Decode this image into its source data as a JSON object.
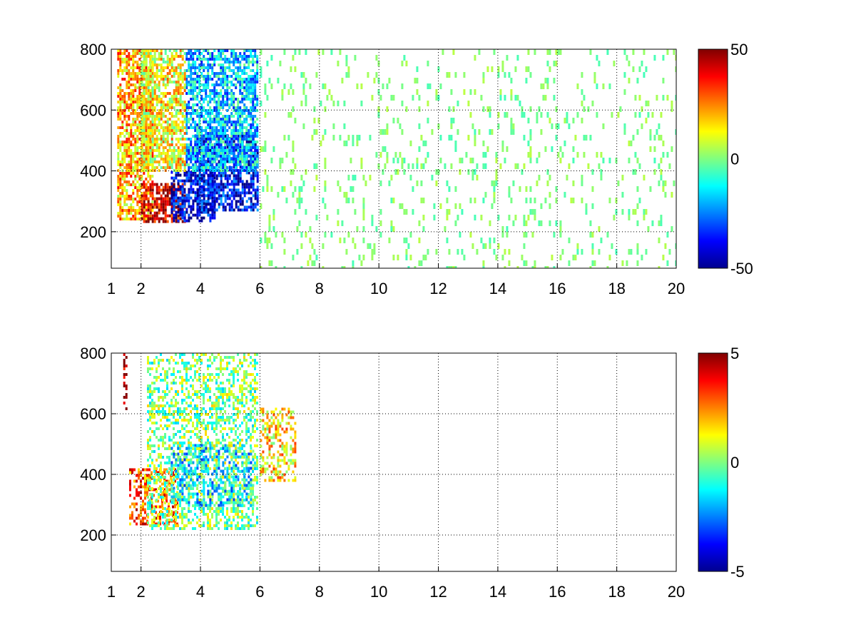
{
  "chart_data": [
    {
      "type": "heatmap",
      "title": "",
      "xlabel": "",
      "ylabel": "",
      "xlim": [
        1,
        20
      ],
      "ylim": [
        80,
        800
      ],
      "xticks": [
        1,
        2,
        4,
        6,
        8,
        10,
        12,
        14,
        16,
        18,
        20
      ],
      "yticks": [
        200,
        400,
        600,
        800
      ],
      "grid": true,
      "colormap": "jet",
      "clim": [
        -50,
        50
      ],
      "colorbar_ticks": [
        -50,
        0,
        50
      ],
      "colorbar_position": "right",
      "regions": [
        {
          "x": [
            1.2,
            2.4
          ],
          "y": [
            240,
            800
          ],
          "value": 20
        },
        {
          "x": [
            2.0,
            3.5
          ],
          "y": [
            230,
            360
          ],
          "value": 42
        },
        {
          "x": [
            3.0,
            4.5
          ],
          "y": [
            240,
            400
          ],
          "value": -42
        },
        {
          "x": [
            3.8,
            5.9
          ],
          "y": [
            270,
            520
          ],
          "value": -38
        },
        {
          "x": [
            3.5,
            5.9
          ],
          "y": [
            400,
            800
          ],
          "value": -18
        },
        {
          "x": [
            2.0,
            3.5
          ],
          "y": [
            400,
            800
          ],
          "value": 12
        },
        {
          "x": [
            6.0,
            20.0
          ],
          "y": [
            80,
            800
          ],
          "value": 0
        }
      ]
    },
    {
      "type": "heatmap",
      "title": "",
      "xlabel": "",
      "ylabel": "",
      "xlim": [
        1,
        20
      ],
      "ylim": [
        80,
        800
      ],
      "xticks": [
        1,
        2,
        4,
        6,
        8,
        10,
        12,
        14,
        16,
        18,
        20
      ],
      "yticks": [
        200,
        400,
        600,
        800
      ],
      "grid": true,
      "colormap": "jet",
      "clim": [
        -5,
        5
      ],
      "colorbar_ticks": [
        -5,
        0,
        5
      ],
      "colorbar_position": "right",
      "regions": [
        {
          "x": [
            1.4,
            1.5
          ],
          "y": [
            620,
            800
          ],
          "value": 5
        },
        {
          "x": [
            1.6,
            3.2
          ],
          "y": [
            240,
            420
          ],
          "value": 3
        },
        {
          "x": [
            2.2,
            5.9
          ],
          "y": [
            220,
            800
          ],
          "value": 0
        },
        {
          "x": [
            3.0,
            5.8
          ],
          "y": [
            300,
            500
          ],
          "value": -1.5
        },
        {
          "x": [
            6.0,
            7.2
          ],
          "y": [
            380,
            620
          ],
          "value": 1.5
        }
      ]
    }
  ],
  "colors": {
    "colormap_stops": [
      "#00008f",
      "#0000ff",
      "#00ffff",
      "#ffff00",
      "#ff0000",
      "#800000"
    ],
    "axes": "#000000",
    "grid": "#000000"
  }
}
